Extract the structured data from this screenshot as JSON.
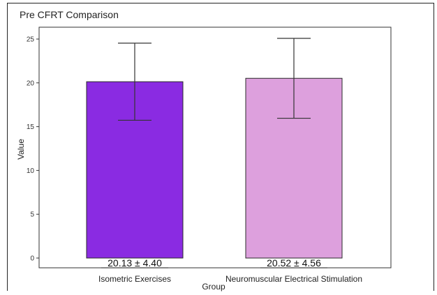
{
  "chart_data": {
    "type": "bar",
    "title": "Pre CFRT Comparison",
    "xlabel": "Group",
    "ylabel": "Value",
    "categories": [
      "Isometric Exercises",
      "Neuromuscular Electrical Stimulation"
    ],
    "values": [
      20.13,
      20.52
    ],
    "errors": [
      4.4,
      4.56
    ],
    "data_labels": [
      "20.13 ± 4.40",
      "20.52 ± 4.56"
    ],
    "colors": [
      "#8a2be2",
      "#dda0dd"
    ],
    "ylim": [
      0,
      26
    ],
    "yticks": [
      0,
      5,
      10,
      15,
      20,
      25
    ],
    "grid": false
  }
}
